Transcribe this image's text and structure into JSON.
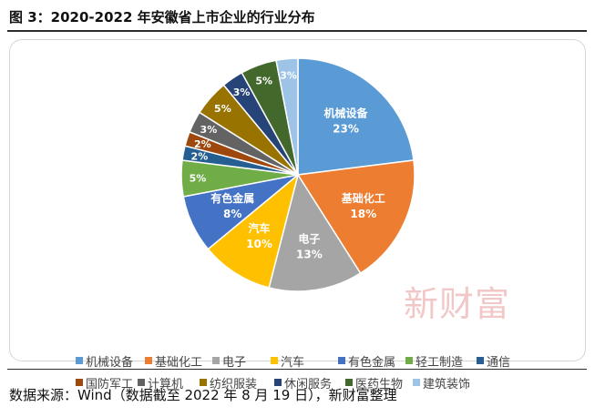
{
  "figure_title": "图 3：2020-2022 年安徽省上市企业的行业分布",
  "source_note": "数据来源：Wind（数据截至 2022 年 8 月 19 日），新财富整理",
  "watermark": "新财富",
  "chart_data": {
    "type": "pie",
    "title": "",
    "legend_position": "bottom",
    "slices": [
      {
        "name": "机械设备",
        "value": 23,
        "label": "23%",
        "color": "#5b9bd5"
      },
      {
        "name": "基础化工",
        "value": 18,
        "label": "18%",
        "color": "#ed7d31"
      },
      {
        "name": "电子",
        "value": 13,
        "label": "13%",
        "color": "#a5a5a5"
      },
      {
        "name": "汽车",
        "value": 10,
        "label": "10%",
        "color": "#ffc000"
      },
      {
        "name": "有色金属",
        "value": 8,
        "label": "8%",
        "color": "#4472c4"
      },
      {
        "name": "轻工制造",
        "value": 5,
        "label": "5%",
        "color": "#70ad47"
      },
      {
        "name": "通信",
        "value": 2,
        "label": "2%",
        "color": "#255e91"
      },
      {
        "name": "国防军工",
        "value": 2,
        "label": "2%",
        "color": "#9e480e"
      },
      {
        "name": "计算机",
        "value": 3,
        "label": "3%",
        "color": "#636363"
      },
      {
        "name": "纺织服装",
        "value": 5,
        "label": "5%",
        "color": "#997300"
      },
      {
        "name": "休闲服务",
        "value": 3,
        "label": "3%",
        "color": "#264478"
      },
      {
        "name": "医药生物",
        "value": 5,
        "label": "5%",
        "color": "#43682b"
      },
      {
        "name": "建筑装饰",
        "value": 3,
        "label": "3%",
        "color": "#9dc3e6"
      }
    ]
  }
}
